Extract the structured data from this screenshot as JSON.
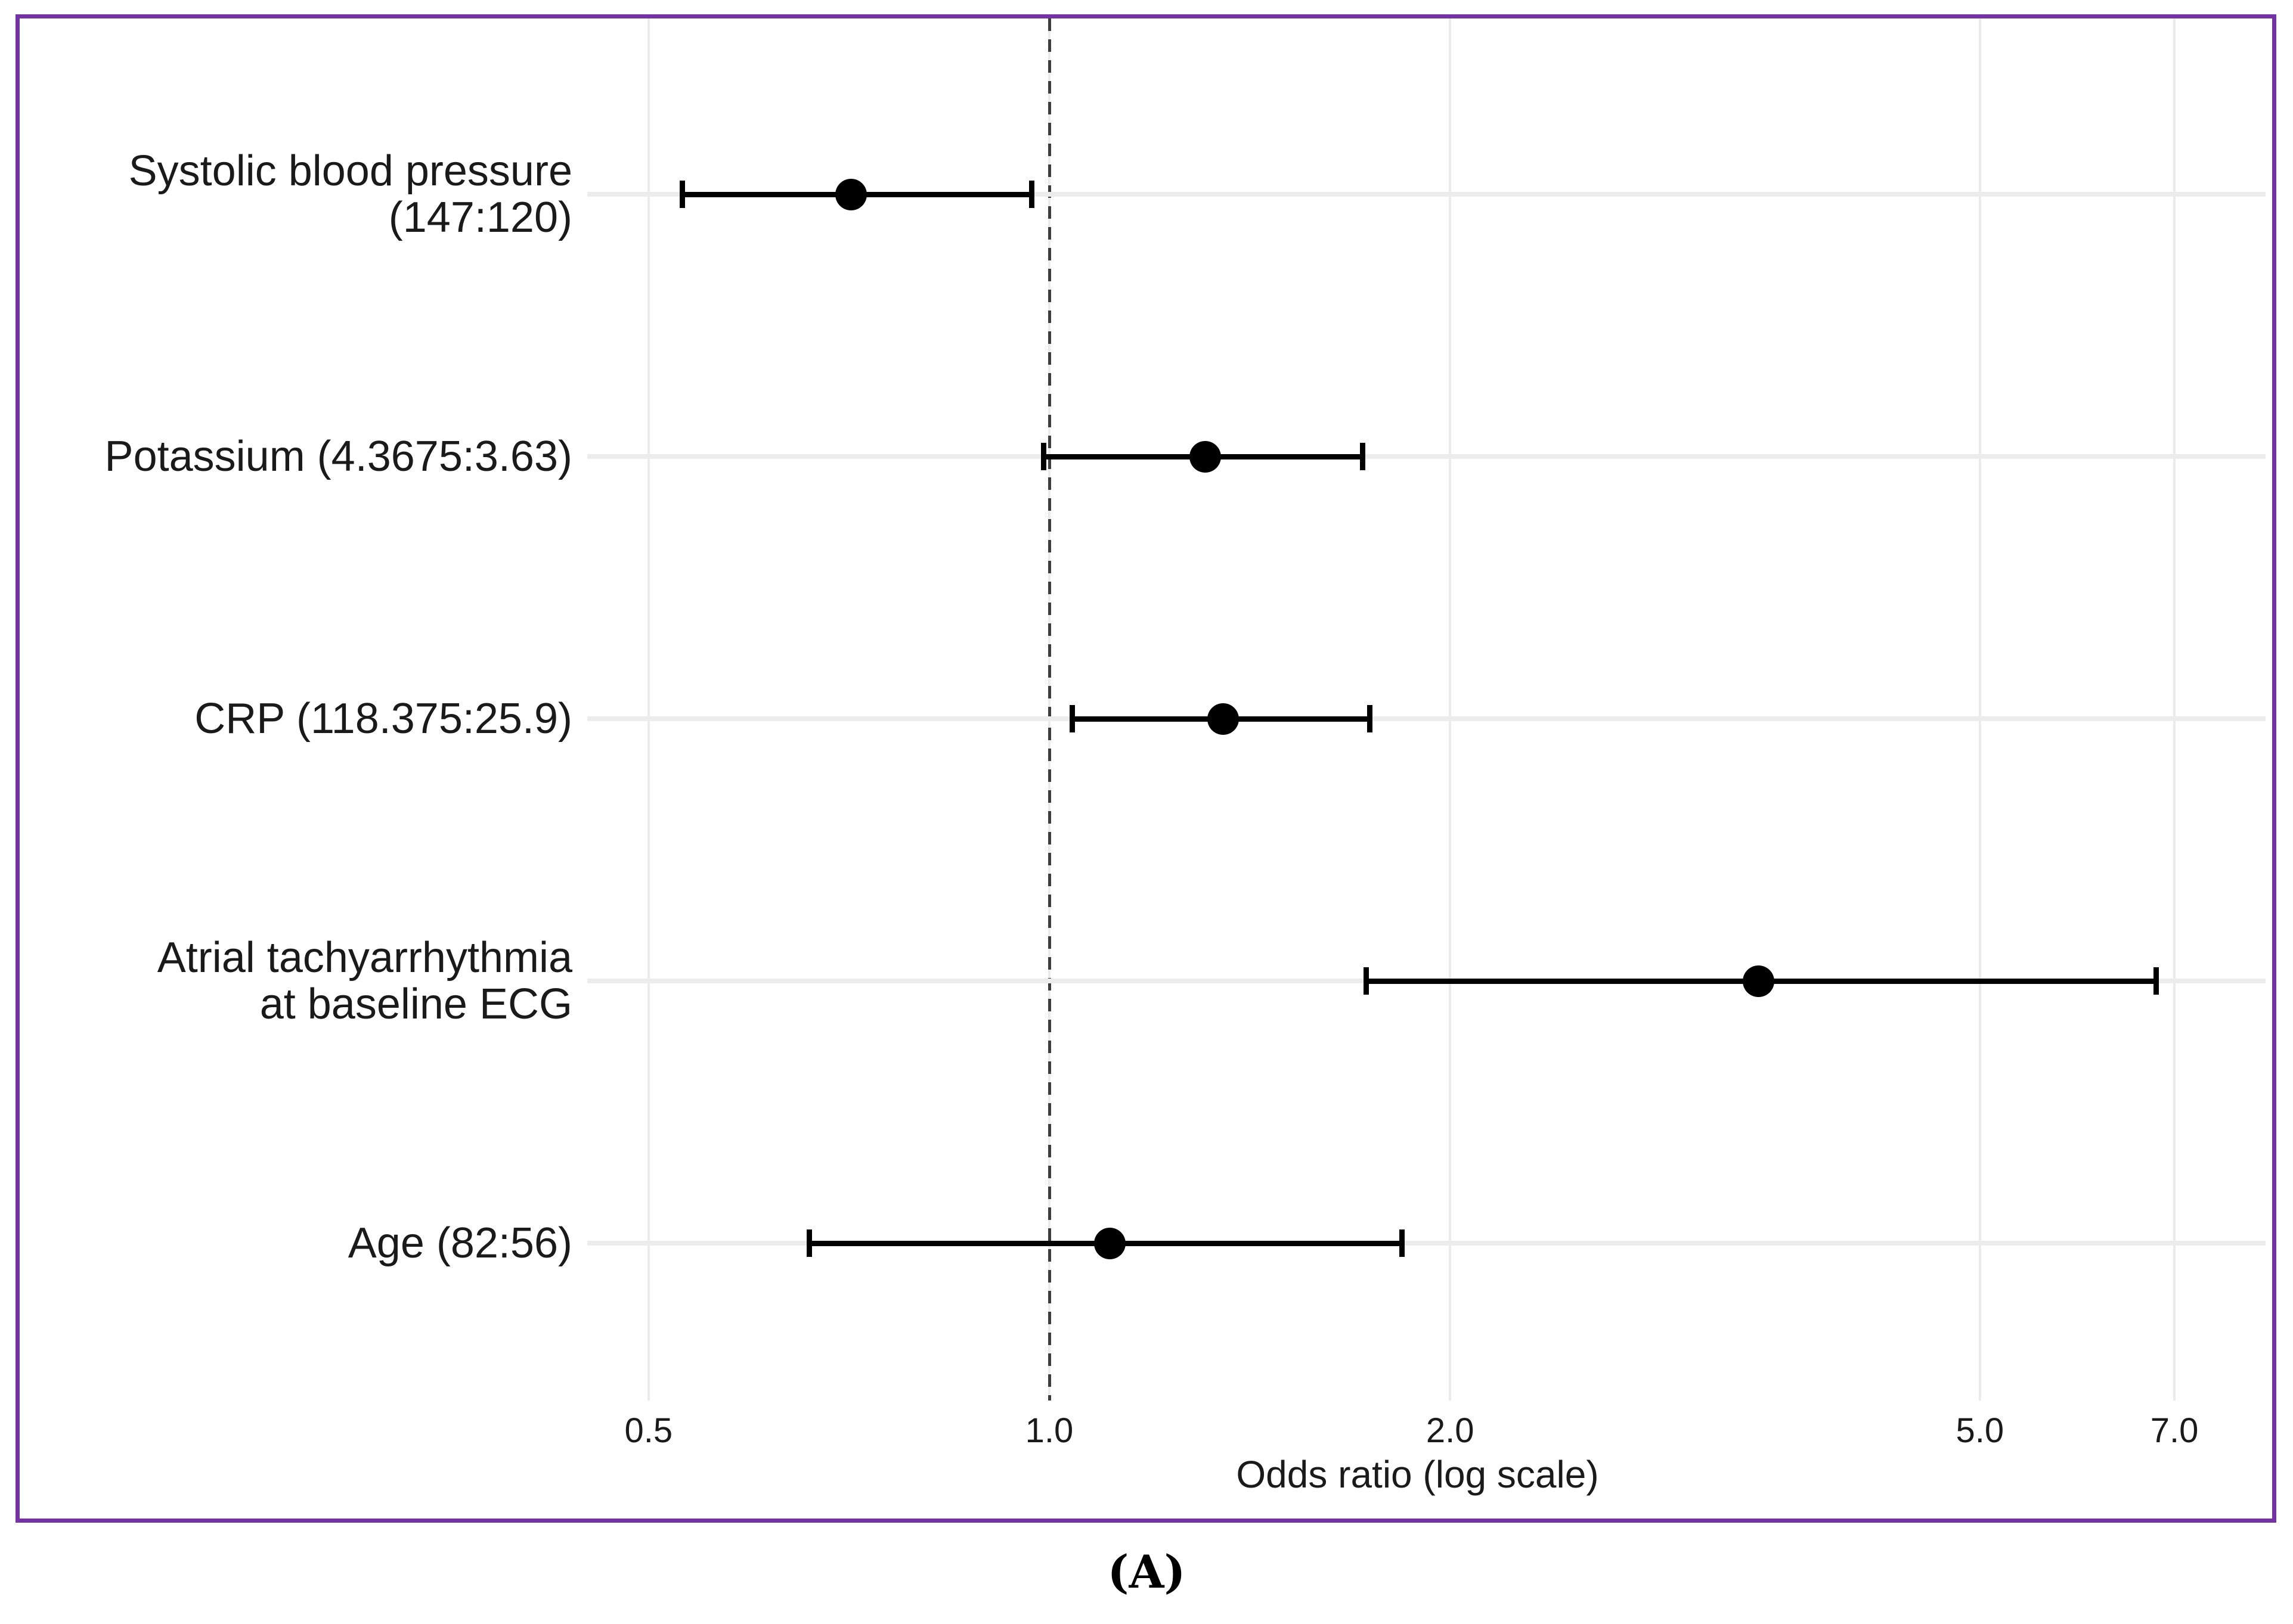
{
  "figure": {
    "caption": "(A)",
    "frame_color": "#7333A3"
  },
  "chart_data": {
    "type": "scatter",
    "subtype": "forest-plot-odds-ratios",
    "title": "",
    "xlabel": "Odds ratio (log scale)",
    "ylabel": "",
    "x_scale": "log",
    "xlim": [
      0.45,
      8.2
    ],
    "x_ticks": [
      0.5,
      1.0,
      2.0,
      5.0,
      7.0
    ],
    "x_tick_labels": [
      "0.5",
      "1.0",
      "2.0",
      "5.0",
      "7.0"
    ],
    "reference_line": 1.0,
    "grid": "on",
    "legend": "none",
    "rows": [
      {
        "label": "Systolic blood pressure (147:120)",
        "or": 0.71,
        "ci_low": 0.53,
        "ci_high": 0.97
      },
      {
        "label": "Potassium (4.3675:3.63)",
        "or": 1.31,
        "ci_low": 0.99,
        "ci_high": 1.72
      },
      {
        "label": "CRP (118.375:25.9)",
        "or": 1.35,
        "ci_low": 1.04,
        "ci_high": 1.74
      },
      {
        "label": "Atrial tachyarrhythmia\nat baseline ECG",
        "or": 3.41,
        "ci_low": 1.73,
        "ci_high": 6.78
      },
      {
        "label": "Age (82:56)",
        "or": 1.11,
        "ci_low": 0.66,
        "ci_high": 1.84
      }
    ],
    "colors": {
      "point": "#000000",
      "error_bar": "#000000",
      "gridline": "#EBEBEB",
      "reference_line": "#3D3D3D",
      "text": "#1A1A1A"
    }
  }
}
